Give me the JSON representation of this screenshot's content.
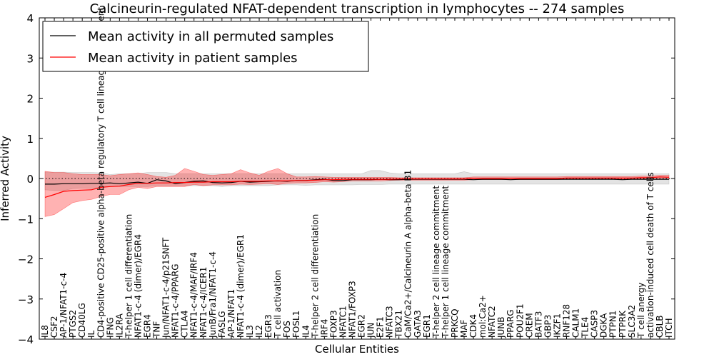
{
  "chart_data": {
    "type": "line",
    "title": "Calcineurin-regulated NFAT-dependent transcription in lymphocytes -- 274 samples",
    "xlabel": "Cellular Entities",
    "ylabel": "Inferred Activity",
    "ylim": [
      -4,
      4
    ],
    "yticks": [
      "4",
      "3",
      "2",
      "1",
      "0",
      "−1",
      "−2",
      "−3",
      "−4"
    ],
    "yticks_values": [
      4,
      3,
      2,
      1,
      0,
      -1,
      -2,
      -3,
      -4
    ],
    "reference_line": 0,
    "legend": {
      "placement": "top-left",
      "entries": [
        {
          "label": "Mean activity in all permuted samples",
          "color": "#000000"
        },
        {
          "label": "Mean activity in patient samples",
          "color": "#ff0000"
        }
      ]
    },
    "categories": [
      "IL8",
      "CSF2",
      "AP-1/NFAT1-c-4",
      "PTGS2",
      "CD40LG",
      "IL",
      "CD4-positive CD25-positive alpha-beta regulatory T cell lineage commitment",
      "IFNG",
      "IL2RA",
      "T-helper 1 cell differentiation",
      "NFAT1-c-4 (dimer)/EGR4",
      "EGR4",
      "TNF",
      "Jun/NFAT1-c-4/p21SNFT",
      "NFAT1-c-4/PPARG",
      "CTLA4",
      "NFAT1-c-4/MAF/IRF4",
      "NFAT1-c-4/ICER1",
      "JunB/Fra1/NFAT1-c-4",
      "FASLG",
      "AP-1/NFAT1",
      "NFAT1-c-4 (dimer)/EGR1",
      "IL3",
      "IL2",
      "EGR3",
      "T cell activation",
      "FOS",
      "FOSL1",
      "IL4",
      "T-helper 2 cell differentiation",
      "IRF4",
      "FOXP3",
      "NFATC1",
      "NFAT1/FOXP3",
      "EGR2",
      "JUN",
      "E2F1",
      "NFATC3",
      "TBX21",
      "CaM/Ca2+/Calcineurin A alpha-beta B1",
      "GATA3",
      "EGR1",
      "T-helper 2 cell lineage commitment",
      "T-helper 1 cell lineage commitment",
      "PRKCQ",
      "MAF",
      "CDK4",
      "mol:Ca2+",
      "NFATC2",
      "JUNB",
      "PPARG",
      "POU2F1",
      "CREM",
      "BATF3",
      "GBP3",
      "IKZF1",
      "RNF128",
      "CALM1",
      "TLE4",
      "CASP3",
      "DGKA",
      "PTPN1",
      "PTPRK",
      "SLC3A2",
      "T cell anergy",
      "activation-induced cell death of T cells",
      "CBLB",
      "ITCH"
    ],
    "series": [
      {
        "name": "Mean activity in all permuted samples",
        "color": "#000000",
        "values": [
          -0.14,
          -0.14,
          -0.13,
          -0.13,
          -0.13,
          -0.12,
          -0.12,
          -0.11,
          -0.13,
          -0.11,
          -0.09,
          -0.12,
          -0.03,
          -0.06,
          -0.13,
          -0.1,
          -0.07,
          -0.06,
          -0.1,
          -0.11,
          -0.1,
          -0.07,
          -0.09,
          -0.08,
          -0.07,
          -0.06,
          -0.07,
          -0.05,
          -0.05,
          -0.03,
          -0.02,
          -0.05,
          -0.05,
          -0.03,
          -0.03,
          -0.03,
          -0.02,
          -0.03,
          -0.03,
          -0.02,
          -0.02,
          -0.02,
          -0.02,
          -0.02,
          -0.02,
          -0.02,
          -0.03,
          -0.02,
          -0.02,
          -0.02,
          -0.03,
          -0.02,
          -0.02,
          -0.02,
          -0.02,
          -0.02,
          -0.02,
          -0.02,
          -0.02,
          -0.02,
          -0.02,
          -0.02,
          -0.03,
          -0.02,
          -0.02,
          -0.02,
          -0.02,
          -0.02
        ],
        "lower": [
          -0.28,
          -0.3,
          -0.3,
          -0.25,
          -0.24,
          -0.25,
          -0.21,
          -0.2,
          -0.2,
          -0.2,
          -0.2,
          -0.2,
          -0.18,
          -0.18,
          -0.18,
          -0.18,
          -0.18,
          -0.18,
          -0.18,
          -0.2,
          -0.18,
          -0.18,
          -0.18,
          -0.18,
          -0.18,
          -0.16,
          -0.16,
          -0.16,
          -0.17,
          -0.16,
          -0.16,
          -0.16,
          -0.16,
          -0.16,
          -0.15,
          -0.15,
          -0.15,
          -0.14,
          -0.14,
          -0.14,
          -0.14,
          -0.14,
          -0.14,
          -0.14,
          -0.14,
          -0.14,
          -0.14,
          -0.14,
          -0.14,
          -0.14,
          -0.14,
          -0.14,
          -0.14,
          -0.14,
          -0.14,
          -0.14,
          -0.14,
          -0.14,
          -0.14,
          -0.14,
          -0.14,
          -0.14,
          -0.14,
          -0.14,
          -0.14,
          -0.14,
          -0.14,
          -0.14
        ],
        "upper": [
          0.16,
          0.16,
          0.16,
          0.15,
          0.15,
          0.15,
          0.14,
          0.1,
          0.12,
          0.12,
          0.12,
          0.15,
          0.15,
          0.15,
          0.12,
          0.12,
          0.12,
          0.12,
          0.12,
          0.12,
          0.12,
          0.12,
          0.12,
          0.12,
          0.12,
          0.12,
          0.12,
          0.12,
          0.12,
          0.12,
          0.12,
          0.12,
          0.12,
          0.12,
          0.12,
          0.2,
          0.2,
          0.14,
          0.12,
          0.12,
          0.12,
          0.12,
          0.12,
          0.12,
          0.12,
          0.17,
          0.12,
          0.12,
          0.12,
          0.12,
          0.12,
          0.12,
          0.12,
          0.12,
          0.12,
          0.12,
          0.12,
          0.12,
          0.12,
          0.12,
          0.12,
          0.12,
          0.12,
          0.12,
          0.12,
          0.12,
          0.12,
          0.12
        ]
      },
      {
        "name": "Mean activity in patient samples",
        "color": "#ff0000",
        "values": [
          -0.47,
          -0.4,
          -0.32,
          -0.3,
          -0.29,
          -0.28,
          -0.22,
          -0.2,
          -0.19,
          -0.15,
          -0.12,
          -0.12,
          -0.11,
          -0.11,
          -0.1,
          -0.1,
          -0.09,
          -0.09,
          -0.08,
          -0.08,
          -0.08,
          -0.07,
          -0.07,
          -0.07,
          -0.06,
          -0.06,
          -0.06,
          -0.05,
          -0.05,
          -0.04,
          -0.03,
          -0.03,
          -0.02,
          -0.02,
          -0.02,
          -0.02,
          -0.02,
          -0.02,
          -0.01,
          -0.01,
          -0.01,
          -0.01,
          -0.01,
          -0.01,
          -0.01,
          -0.01,
          0.0,
          0.0,
          0.0,
          0.0,
          0.0,
          0.0,
          0.0,
          0.0,
          0.0,
          0.0,
          0.01,
          0.01,
          0.01,
          0.01,
          0.01,
          0.01,
          0.01,
          0.01,
          0.02,
          0.02,
          0.04,
          0.03
        ],
        "lower": [
          -0.95,
          -0.9,
          -0.75,
          -0.6,
          -0.55,
          -0.52,
          -0.45,
          -0.4,
          -0.4,
          -0.28,
          -0.22,
          -0.25,
          -0.2,
          -0.2,
          -0.2,
          -0.2,
          -0.15,
          -0.18,
          -0.16,
          -0.16,
          -0.16,
          -0.14,
          -0.15,
          -0.14,
          -0.13,
          -0.15,
          -0.12,
          -0.11,
          -0.11,
          -0.1,
          -0.08,
          -0.09,
          -0.08,
          -0.06,
          -0.06,
          -0.06,
          -0.06,
          -0.05,
          -0.04,
          -0.04,
          -0.04,
          -0.04,
          -0.04,
          -0.04,
          -0.04,
          -0.04,
          -0.03,
          -0.03,
          -0.03,
          -0.03,
          -0.03,
          -0.03,
          -0.03,
          -0.03,
          -0.03,
          -0.03,
          -0.02,
          -0.02,
          -0.02,
          -0.02,
          -0.02,
          -0.02,
          -0.02,
          -0.02,
          -0.02,
          -0.02,
          -0.02,
          -0.02
        ],
        "upper": [
          0.18,
          0.15,
          0.15,
          0.12,
          0.1,
          0.1,
          0.1,
          0.07,
          0.1,
          0.12,
          0.14,
          0.1,
          0.05,
          0.03,
          0.08,
          0.25,
          0.18,
          0.1,
          0.08,
          0.1,
          0.12,
          0.22,
          0.14,
          0.08,
          0.18,
          0.25,
          0.12,
          0.04,
          0.04,
          0.05,
          0.04,
          0.03,
          0.03,
          0.03,
          0.03,
          0.03,
          0.03,
          0.03,
          0.02,
          0.02,
          0.02,
          0.02,
          0.02,
          0.02,
          0.02,
          0.02,
          0.04,
          0.04,
          0.04,
          0.04,
          0.04,
          0.04,
          0.04,
          0.04,
          0.04,
          0.04,
          0.05,
          0.05,
          0.05,
          0.05,
          0.05,
          0.05,
          0.05,
          0.05,
          0.06,
          0.06,
          0.08,
          0.08
        ]
      }
    ]
  }
}
